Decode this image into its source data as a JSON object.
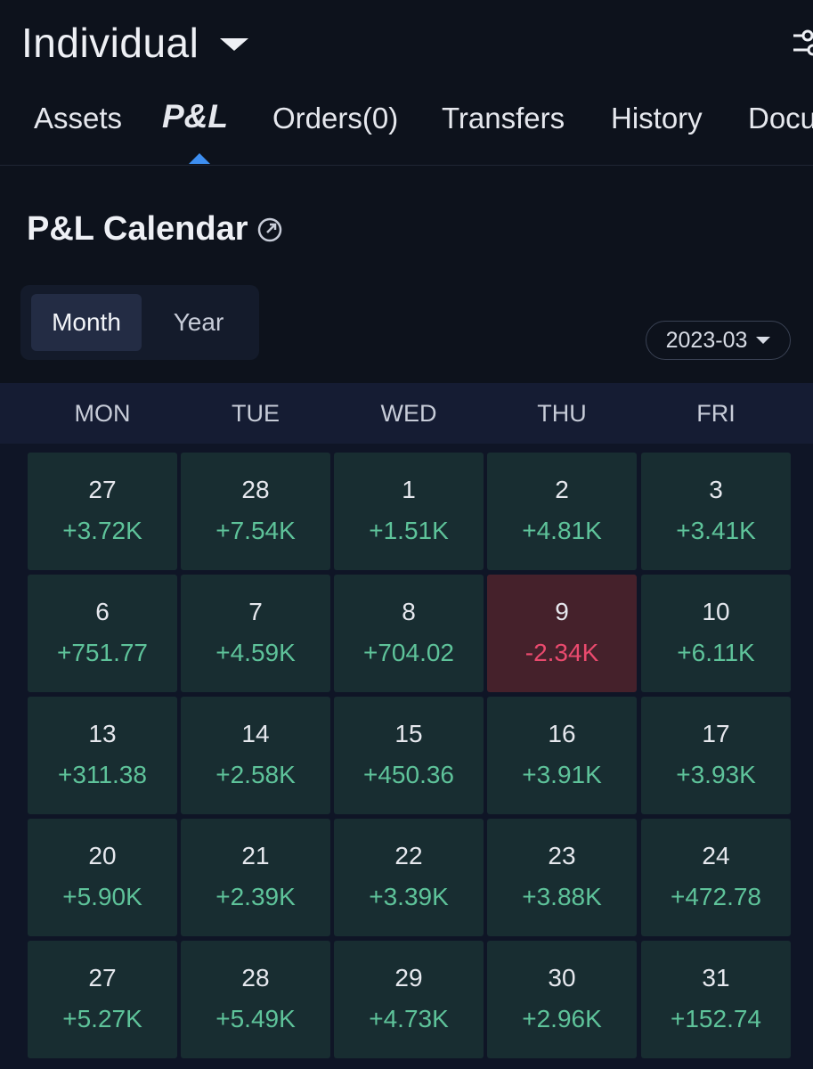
{
  "header": {
    "account": "Individual"
  },
  "tabs": [
    {
      "label": "Assets"
    },
    {
      "label": "P&L"
    },
    {
      "label": "Orders(0)"
    },
    {
      "label": "Transfers"
    },
    {
      "label": "History"
    },
    {
      "label": "Docu"
    }
  ],
  "section": {
    "title": "P&L Calendar"
  },
  "view_toggle": {
    "month": "Month",
    "year": "Year"
  },
  "month_picker": {
    "value": "2023-03"
  },
  "weekdays": [
    "MON",
    "TUE",
    "WED",
    "THU",
    "FRI"
  ],
  "colors": {
    "gain": "#5ec39a",
    "loss": "#ea4a6e",
    "accent": "#3d8ef0"
  },
  "calendar": [
    [
      {
        "day": "27",
        "pnl": "+3.72K"
      },
      {
        "day": "28",
        "pnl": "+7.54K"
      },
      {
        "day": "1",
        "pnl": "+1.51K"
      },
      {
        "day": "2",
        "pnl": "+4.81K"
      },
      {
        "day": "3",
        "pnl": "+3.41K"
      }
    ],
    [
      {
        "day": "6",
        "pnl": "+751.77"
      },
      {
        "day": "7",
        "pnl": "+4.59K"
      },
      {
        "day": "8",
        "pnl": "+704.02"
      },
      {
        "day": "9",
        "pnl": "-2.34K",
        "loss": true
      },
      {
        "day": "10",
        "pnl": "+6.11K"
      }
    ],
    [
      {
        "day": "13",
        "pnl": "+311.38"
      },
      {
        "day": "14",
        "pnl": "+2.58K"
      },
      {
        "day": "15",
        "pnl": "+450.36"
      },
      {
        "day": "16",
        "pnl": "+3.91K"
      },
      {
        "day": "17",
        "pnl": "+3.93K"
      }
    ],
    [
      {
        "day": "20",
        "pnl": "+5.90K"
      },
      {
        "day": "21",
        "pnl": "+2.39K"
      },
      {
        "day": "22",
        "pnl": "+3.39K"
      },
      {
        "day": "23",
        "pnl": "+3.88K"
      },
      {
        "day": "24",
        "pnl": "+472.78"
      }
    ],
    [
      {
        "day": "27",
        "pnl": "+5.27K"
      },
      {
        "day": "28",
        "pnl": "+5.49K"
      },
      {
        "day": "29",
        "pnl": "+4.73K"
      },
      {
        "day": "30",
        "pnl": "+2.96K"
      },
      {
        "day": "31",
        "pnl": "+152.74"
      }
    ]
  ]
}
